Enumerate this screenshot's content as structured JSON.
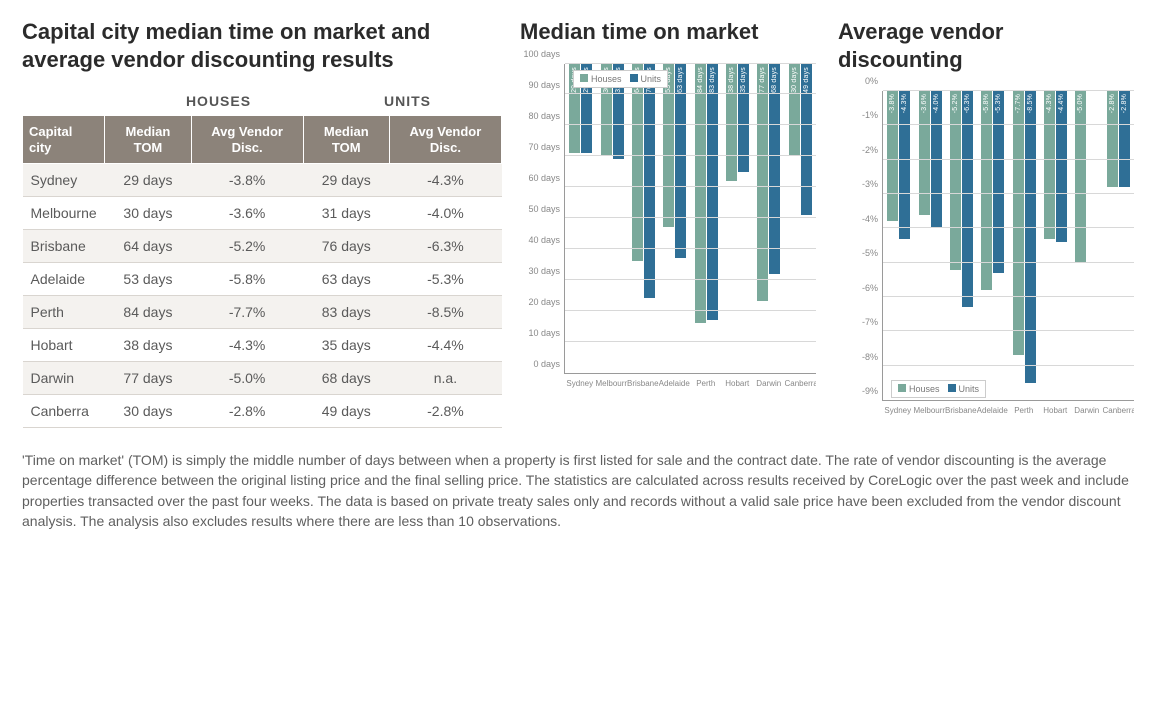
{
  "colors": {
    "houses": "#7aa99b",
    "units": "#2f6f96",
    "headerBg": "#8c837a",
    "grid": "#d8d8d8",
    "text": "#5a5a5a"
  },
  "mainTitle": "Capital city median time on market and average vendor discounting results",
  "groupHeaders": {
    "houses": "HOUSES",
    "units": "UNITS"
  },
  "columns": {
    "city": "Capital city",
    "tom": "Median TOM",
    "disc": "Avg Vendor Disc."
  },
  "cities": [
    "Sydney",
    "Melbourne",
    "Brisbane",
    "Adelaide",
    "Perth",
    "Hobart",
    "Darwin",
    "Canberra"
  ],
  "table": [
    {
      "city": "Sydney",
      "h_tom": "29 days",
      "h_disc": "-3.8%",
      "u_tom": "29 days",
      "u_disc": "-4.3%"
    },
    {
      "city": "Melbourne",
      "h_tom": "30 days",
      "h_disc": "-3.6%",
      "u_tom": "31 days",
      "u_disc": "-4.0%"
    },
    {
      "city": "Brisbane",
      "h_tom": "64 days",
      "h_disc": "-5.2%",
      "u_tom": "76 days",
      "u_disc": "-6.3%"
    },
    {
      "city": "Adelaide",
      "h_tom": "53 days",
      "h_disc": "-5.8%",
      "u_tom": "63 days",
      "u_disc": "-5.3%"
    },
    {
      "city": "Perth",
      "h_tom": "84 days",
      "h_disc": "-7.7%",
      "u_tom": "83 days",
      "u_disc": "-8.5%"
    },
    {
      "city": "Hobart",
      "h_tom": "38 days",
      "h_disc": "-4.3%",
      "u_tom": "35 days",
      "u_disc": "-4.4%"
    },
    {
      "city": "Darwin",
      "h_tom": "77 days",
      "h_disc": "-5.0%",
      "u_tom": "68 days",
      "u_disc": "n.a."
    },
    {
      "city": "Canberra",
      "h_tom": "30 days",
      "h_disc": "-2.8%",
      "u_tom": "49 days",
      "u_disc": "-2.8%"
    }
  ],
  "chart_tom": {
    "title": "Median time on market",
    "type": "bar",
    "ymin": 0,
    "ymax": 100,
    "ystep": 10,
    "yunit": " days",
    "legend": {
      "houses": "Houses",
      "units": "Units",
      "position": "top-left"
    },
    "series": {
      "houses": [
        29,
        30,
        64,
        53,
        84,
        38,
        77,
        30
      ],
      "units": [
        29,
        31,
        76,
        63,
        83,
        35,
        68,
        49
      ]
    },
    "bar_label_suffix": " days"
  },
  "chart_disc": {
    "title": "Average vendor discounting",
    "type": "bar-inverted",
    "ymin": -9,
    "ymax": 0,
    "ystep": 1,
    "yunit": "%",
    "legend": {
      "houses": "Houses",
      "units": "Units",
      "position": "bottom-left"
    },
    "series": {
      "houses": [
        -3.8,
        -3.6,
        -5.2,
        -5.8,
        -7.7,
        -4.3,
        -5.0,
        -2.8
      ],
      "units": [
        -4.3,
        -4.0,
        -6.3,
        -5.3,
        -8.5,
        -4.4,
        null,
        -2.8
      ]
    },
    "bar_label_suffix": "%"
  },
  "footnote": "'Time on market' (TOM) is simply the middle number of days between when a property is first listed for sale and the contract date.  The rate of vendor discounting is the average percentage difference between the original listing price and the final selling price.  The statistics are calculated across results received by CoreLogic over the past week and include properties transacted over the past four weeks. The data is based on private treaty sales only and records without a valid sale price have been excluded from the vendor discount analysis. The analysis also excludes results where there are less than 10 observations."
}
